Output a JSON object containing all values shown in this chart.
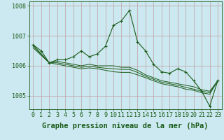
{
  "background_color": "#cce8f0",
  "line_color": "#1a5c1a",
  "xlabel": "Graphe pression niveau de la mer (hPa)",
  "xlabel_fontsize": 7.5,
  "tick_fontsize": 6,
  "ylim": [
    1004.55,
    1008.15
  ],
  "xlim": [
    -0.5,
    23.5
  ],
  "yticks": [
    1005,
    1006,
    1007,
    1008
  ],
  "xticks": [
    0,
    1,
    2,
    3,
    4,
    5,
    6,
    7,
    8,
    9,
    10,
    11,
    12,
    13,
    14,
    15,
    16,
    17,
    18,
    19,
    20,
    21,
    22,
    23
  ],
  "series_main": [
    1006.7,
    1006.5,
    1006.1,
    1006.2,
    1006.2,
    1006.3,
    1006.5,
    1006.3,
    1006.4,
    1006.65,
    1007.35,
    1007.5,
    1007.85,
    1006.8,
    1006.5,
    1006.05,
    1005.8,
    1005.75,
    1005.9,
    1005.8,
    1005.5,
    1005.15,
    1004.65,
    1005.5
  ],
  "series_trend1": [
    1006.7,
    1006.4,
    1006.1,
    1006.15,
    1006.1,
    1006.05,
    1006.0,
    1006.05,
    1006.0,
    1006.0,
    1006.0,
    1005.95,
    1005.95,
    1005.85,
    1005.7,
    1005.6,
    1005.5,
    1005.45,
    1005.4,
    1005.35,
    1005.3,
    1005.2,
    1005.15,
    1005.5
  ],
  "series_trend2": [
    1006.65,
    1006.38,
    1006.1,
    1006.1,
    1006.05,
    1006.0,
    1005.95,
    1005.98,
    1005.95,
    1005.92,
    1005.9,
    1005.88,
    1005.88,
    1005.78,
    1005.65,
    1005.55,
    1005.45,
    1005.4,
    1005.35,
    1005.28,
    1005.22,
    1005.15,
    1005.1,
    1005.5
  ],
  "series_trend3": [
    1006.6,
    1006.35,
    1006.1,
    1006.05,
    1006.0,
    1005.95,
    1005.9,
    1005.93,
    1005.9,
    1005.85,
    1005.8,
    1005.78,
    1005.78,
    1005.7,
    1005.6,
    1005.5,
    1005.4,
    1005.35,
    1005.3,
    1005.22,
    1005.18,
    1005.1,
    1005.05,
    1005.5
  ]
}
